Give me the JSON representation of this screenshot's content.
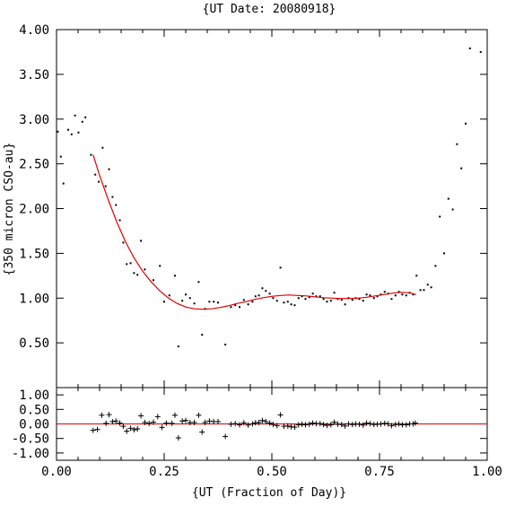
{
  "chart_data": {
    "type": "scatter",
    "title": "{UT Date: 20080918}",
    "xlabel": "{UT (Fraction of Day)}",
    "ylabel": "{350 micron CSO-au}",
    "xlim": [
      0,
      1
    ],
    "x_ticks": [
      "0.00",
      "0.25",
      "0.50",
      "0.75",
      "1.00"
    ],
    "top_panel": {
      "ylim": [
        0,
        4
      ],
      "y_ticks": [
        "0.50",
        "1.00",
        "1.50",
        "2.00",
        "2.50",
        "3.00",
        "3.50",
        "4.00"
      ],
      "points": [
        [
          0.003,
          2.86
        ],
        [
          0.01,
          2.58
        ],
        [
          0.016,
          2.28
        ],
        [
          0.027,
          2.88
        ],
        [
          0.035,
          2.83
        ],
        [
          0.043,
          3.04
        ],
        [
          0.051,
          2.85
        ],
        [
          0.06,
          2.97
        ],
        [
          0.067,
          3.02
        ],
        [
          0.08,
          2.6
        ],
        [
          0.09,
          2.38
        ],
        [
          0.098,
          2.3
        ],
        [
          0.107,
          2.68
        ],
        [
          0.114,
          2.25
        ],
        [
          0.122,
          2.44
        ],
        [
          0.13,
          2.13
        ],
        [
          0.138,
          2.04
        ],
        [
          0.147,
          1.87
        ],
        [
          0.155,
          1.62
        ],
        [
          0.163,
          1.38
        ],
        [
          0.172,
          1.39
        ],
        [
          0.18,
          1.28
        ],
        [
          0.188,
          1.26
        ],
        [
          0.196,
          1.64
        ],
        [
          0.205,
          1.32
        ],
        [
          0.225,
          1.2
        ],
        [
          0.24,
          1.36
        ],
        [
          0.25,
          0.96
        ],
        [
          0.262,
          1.03
        ],
        [
          0.275,
          1.25
        ],
        [
          0.283,
          0.46
        ],
        [
          0.292,
          0.97
        ],
        [
          0.3,
          1.04
        ],
        [
          0.31,
          1.0
        ],
        [
          0.32,
          0.94
        ],
        [
          0.33,
          1.18
        ],
        [
          0.338,
          0.59
        ],
        [
          0.345,
          0.88
        ],
        [
          0.355,
          0.96
        ],
        [
          0.365,
          0.96
        ],
        [
          0.375,
          0.95
        ],
        [
          0.392,
          0.48
        ],
        [
          0.405,
          0.9
        ],
        [
          0.415,
          0.92
        ],
        [
          0.425,
          0.9
        ],
        [
          0.435,
          0.98
        ],
        [
          0.445,
          0.93
        ],
        [
          0.455,
          0.96
        ],
        [
          0.462,
          1.02
        ],
        [
          0.47,
          1.03
        ],
        [
          0.478,
          1.11
        ],
        [
          0.486,
          1.08
        ],
        [
          0.495,
          1.05
        ],
        [
          0.503,
          1.0
        ],
        [
          0.512,
          0.97
        ],
        [
          0.52,
          1.34
        ],
        [
          0.528,
          0.95
        ],
        [
          0.537,
          0.96
        ],
        [
          0.545,
          0.93
        ],
        [
          0.553,
          0.92
        ],
        [
          0.562,
          1.0
        ],
        [
          0.57,
          1.02
        ],
        [
          0.578,
          0.99
        ],
        [
          0.587,
          1.01
        ],
        [
          0.595,
          1.05
        ],
        [
          0.603,
          1.02
        ],
        [
          0.612,
          1.02
        ],
        [
          0.62,
          0.99
        ],
        [
          0.628,
          0.96
        ],
        [
          0.637,
          0.97
        ],
        [
          0.645,
          1.06
        ],
        [
          0.653,
          0.99
        ],
        [
          0.662,
          0.98
        ],
        [
          0.67,
          0.93
        ],
        [
          0.678,
          1.0
        ],
        [
          0.687,
          0.98
        ],
        [
          0.695,
          1.0
        ],
        [
          0.703,
          0.99
        ],
        [
          0.712,
          0.97
        ],
        [
          0.72,
          1.04
        ],
        [
          0.728,
          1.03
        ],
        [
          0.737,
          1.0
        ],
        [
          0.745,
          1.02
        ],
        [
          0.753,
          1.04
        ],
        [
          0.762,
          1.07
        ],
        [
          0.77,
          1.05
        ],
        [
          0.778,
          0.99
        ],
        [
          0.787,
          1.03
        ],
        [
          0.795,
          1.07
        ],
        [
          0.803,
          1.04
        ],
        [
          0.812,
          1.03
        ],
        [
          0.82,
          1.06
        ],
        [
          0.828,
          1.04
        ],
        [
          0.836,
          1.25
        ],
        [
          0.845,
          1.09
        ],
        [
          0.853,
          1.09
        ],
        [
          0.862,
          1.15
        ],
        [
          0.87,
          1.12
        ],
        [
          0.88,
          1.36
        ],
        [
          0.89,
          1.91
        ],
        [
          0.9,
          1.5
        ],
        [
          0.91,
          2.11
        ],
        [
          0.92,
          1.99
        ],
        [
          0.93,
          2.72
        ],
        [
          0.94,
          2.45
        ],
        [
          0.95,
          2.95
        ],
        [
          0.96,
          3.79
        ],
        [
          0.985,
          3.75
        ]
      ],
      "fit": [
        [
          0.085,
          2.6
        ],
        [
          0.1,
          2.37
        ],
        [
          0.12,
          2.1
        ],
        [
          0.14,
          1.85
        ],
        [
          0.16,
          1.63
        ],
        [
          0.18,
          1.45
        ],
        [
          0.2,
          1.3
        ],
        [
          0.22,
          1.18
        ],
        [
          0.24,
          1.08
        ],
        [
          0.26,
          1.0
        ],
        [
          0.28,
          0.94
        ],
        [
          0.3,
          0.9
        ],
        [
          0.32,
          0.88
        ],
        [
          0.34,
          0.875
        ],
        [
          0.36,
          0.88
        ],
        [
          0.38,
          0.895
        ],
        [
          0.4,
          0.915
        ],
        [
          0.42,
          0.94
        ],
        [
          0.44,
          0.96
        ],
        [
          0.46,
          0.985
        ],
        [
          0.48,
          1.005
        ],
        [
          0.5,
          1.02
        ],
        [
          0.52,
          1.03
        ],
        [
          0.54,
          1.035
        ],
        [
          0.56,
          1.03
        ],
        [
          0.58,
          1.025
        ],
        [
          0.6,
          1.015
        ],
        [
          0.62,
          1.005
        ],
        [
          0.64,
          1.0
        ],
        [
          0.66,
          0.995
        ],
        [
          0.68,
          0.995
        ],
        [
          0.7,
          1.0
        ],
        [
          0.72,
          1.01
        ],
        [
          0.74,
          1.025
        ],
        [
          0.76,
          1.04
        ],
        [
          0.78,
          1.055
        ],
        [
          0.8,
          1.065
        ],
        [
          0.82,
          1.06
        ],
        [
          0.835,
          1.04
        ]
      ]
    },
    "bottom_panel": {
      "ylim": [
        -1.25,
        1.25
      ],
      "y_ticks": [
        "-1.00",
        "-0.50",
        "0.00",
        "0.50",
        "1.00"
      ],
      "residuals": [
        [
          0.085,
          -0.22
        ],
        [
          0.095,
          -0.19
        ],
        [
          0.105,
          0.3
        ],
        [
          0.115,
          0.02
        ],
        [
          0.122,
          0.32
        ],
        [
          0.13,
          0.08
        ],
        [
          0.138,
          0.1
        ],
        [
          0.147,
          0.03
        ],
        [
          0.155,
          -0.08
        ],
        [
          0.163,
          -0.25
        ],
        [
          0.172,
          -0.15
        ],
        [
          0.18,
          -0.2
        ],
        [
          0.188,
          -0.17
        ],
        [
          0.196,
          0.28
        ],
        [
          0.205,
          0.05
        ],
        [
          0.215,
          0.02
        ],
        [
          0.225,
          0.06
        ],
        [
          0.235,
          0.25
        ],
        [
          0.245,
          -0.12
        ],
        [
          0.255,
          0.03
        ],
        [
          0.268,
          0.02
        ],
        [
          0.275,
          0.3
        ],
        [
          0.283,
          -0.48
        ],
        [
          0.292,
          0.1
        ],
        [
          0.3,
          0.12
        ],
        [
          0.31,
          0.05
        ],
        [
          0.32,
          0.05
        ],
        [
          0.33,
          0.3
        ],
        [
          0.338,
          -0.28
        ],
        [
          0.345,
          0.05
        ],
        [
          0.355,
          0.1
        ],
        [
          0.365,
          0.08
        ],
        [
          0.375,
          0.08
        ],
        [
          0.392,
          -0.43
        ],
        [
          0.405,
          -0.01
        ],
        [
          0.415,
          0.01
        ],
        [
          0.425,
          -0.03
        ],
        [
          0.435,
          0.04
        ],
        [
          0.445,
          -0.04
        ],
        [
          0.455,
          0.0
        ],
        [
          0.462,
          0.04
        ],
        [
          0.47,
          0.05
        ],
        [
          0.478,
          0.12
        ],
        [
          0.486,
          0.08
        ],
        [
          0.495,
          0.03
        ],
        [
          0.503,
          -0.02
        ],
        [
          0.512,
          -0.06
        ],
        [
          0.52,
          0.31
        ],
        [
          0.528,
          -0.08
        ],
        [
          0.537,
          -0.07
        ],
        [
          0.545,
          -0.1
        ],
        [
          0.553,
          -0.11
        ],
        [
          0.562,
          -0.03
        ],
        [
          0.57,
          -0.01
        ],
        [
          0.578,
          -0.03
        ],
        [
          0.587,
          -0.01
        ],
        [
          0.595,
          0.03
        ],
        [
          0.603,
          0.01
        ],
        [
          0.612,
          0.01
        ],
        [
          0.62,
          -0.02
        ],
        [
          0.628,
          -0.05
        ],
        [
          0.637,
          -0.03
        ],
        [
          0.645,
          0.06
        ],
        [
          0.653,
          -0.01
        ],
        [
          0.662,
          -0.02
        ],
        [
          0.67,
          -0.07
        ],
        [
          0.678,
          0.0
        ],
        [
          0.687,
          -0.02
        ],
        [
          0.695,
          0.0
        ],
        [
          0.703,
          -0.01
        ],
        [
          0.712,
          -0.04
        ],
        [
          0.72,
          0.03
        ],
        [
          0.728,
          0.01
        ],
        [
          0.737,
          -0.02
        ],
        [
          0.745,
          -0.01
        ],
        [
          0.753,
          0.0
        ],
        [
          0.762,
          0.02
        ],
        [
          0.77,
          0.0
        ],
        [
          0.778,
          -0.06
        ],
        [
          0.787,
          -0.02
        ],
        [
          0.795,
          0.0
        ],
        [
          0.803,
          -0.03
        ],
        [
          0.812,
          -0.03
        ],
        [
          0.82,
          0.0
        ],
        [
          0.828,
          0.0
        ],
        [
          0.833,
          0.03
        ]
      ]
    }
  }
}
